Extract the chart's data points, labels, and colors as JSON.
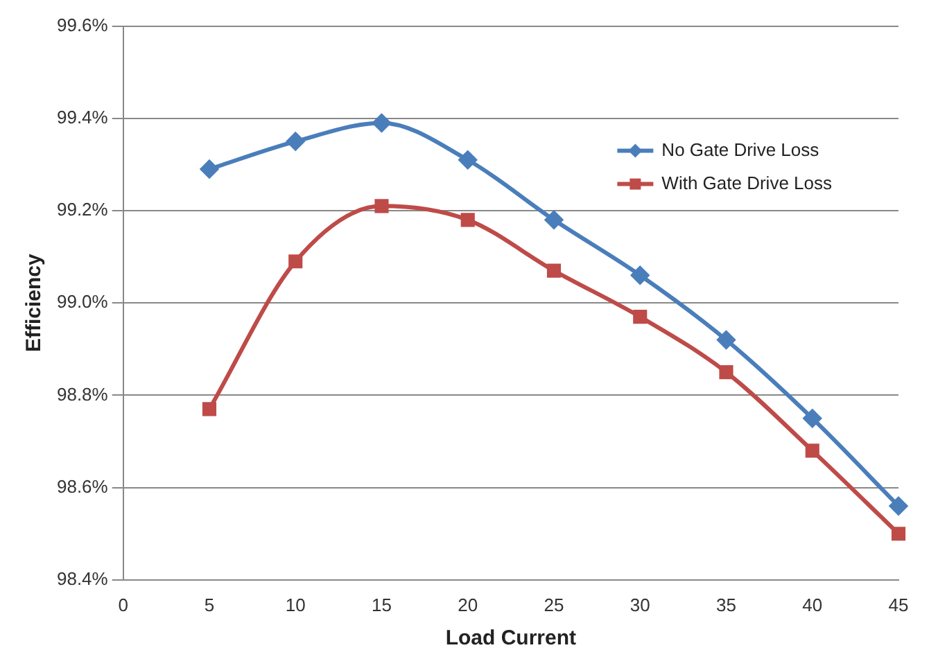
{
  "chart_data": {
    "type": "line",
    "xlabel": "Load Current",
    "ylabel": "Efficiency",
    "x": [
      5,
      10,
      15,
      20,
      25,
      30,
      35,
      40,
      45
    ],
    "series": [
      {
        "name": "No Gate Drive Loss",
        "color": "#4a7ebb",
        "marker": "diamond",
        "values": [
          99.29,
          99.35,
          99.39,
          99.31,
          99.18,
          99.06,
          98.92,
          98.75,
          98.56
        ]
      },
      {
        "name": "With Gate Drive Loss",
        "color": "#be4b48",
        "marker": "square",
        "values": [
          98.77,
          99.09,
          99.21,
          99.18,
          99.07,
          98.97,
          98.85,
          98.68,
          98.5
        ]
      }
    ],
    "xlim": [
      0,
      45
    ],
    "xticks": [
      0,
      5,
      10,
      15,
      20,
      25,
      30,
      35,
      40,
      45
    ],
    "ylim": [
      98.4,
      99.6
    ],
    "yticks": [
      {
        "value": 98.4,
        "label": "98.4%"
      },
      {
        "value": 98.6,
        "label": "98.6%"
      },
      {
        "value": 98.8,
        "label": "98.8%"
      },
      {
        "value": 99.0,
        "label": "99.0%"
      },
      {
        "value": 99.2,
        "label": "99.2%"
      },
      {
        "value": 99.4,
        "label": "99.4%"
      },
      {
        "value": 99.6,
        "label": "99.6%"
      }
    ],
    "grid": "y",
    "legend": "top right"
  }
}
